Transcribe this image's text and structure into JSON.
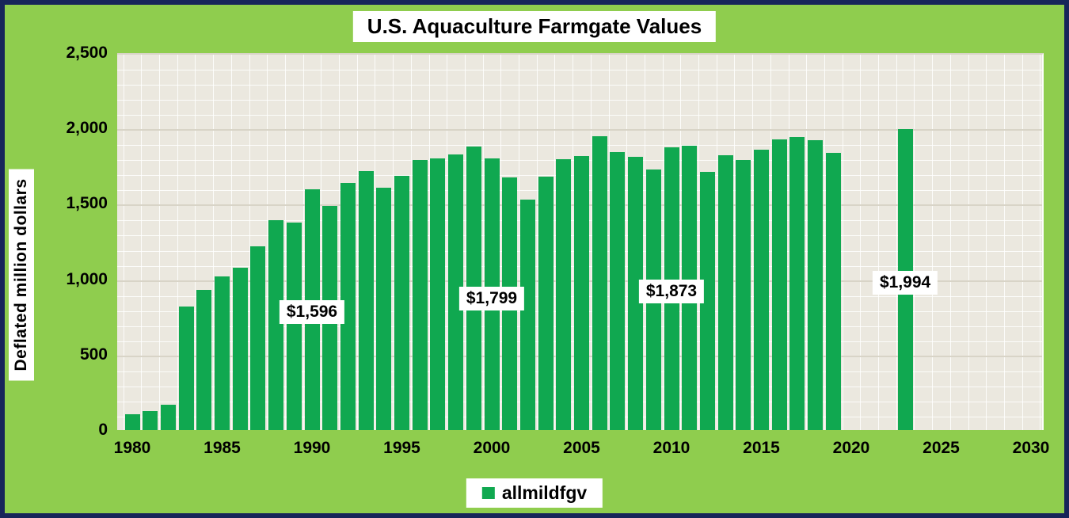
{
  "page": {
    "background_color": "#8FCD4E",
    "border_color": "#17255A"
  },
  "chart_data": {
    "type": "bar",
    "title": "U.S. Aquaculture Farmgate Values",
    "ylabel": "Deflated million dollars",
    "xlabel": "",
    "units": "deflated million dollars",
    "bar_color": "#10A850",
    "plot_background": "#EBE8DF",
    "grid_minor_color": "rgba(255,255,255,0.85)",
    "grid_major_color": "#D8D4C7",
    "ylim": [
      0,
      2500
    ],
    "xlim": [
      1980,
      2030
    ],
    "y_ticks": [
      0,
      500,
      1000,
      1500,
      2000,
      2500
    ],
    "x_ticks": [
      1980,
      1985,
      1990,
      1995,
      2000,
      2005,
      2010,
      2015,
      2020,
      2025,
      2030
    ],
    "grid": {
      "visible": true,
      "minor_y_step": 100,
      "major_y_step": 500,
      "x_step_years": 1
    },
    "legend": {
      "position": "bottom",
      "entries": [
        {
          "label": "allmildfgv",
          "color": "#10A850"
        }
      ]
    },
    "series": [
      {
        "name": "allmildfgv",
        "x": [
          1980,
          1981,
          1982,
          1983,
          1984,
          1985,
          1986,
          1987,
          1988,
          1989,
          1990,
          1991,
          1992,
          1993,
          1994,
          1995,
          1996,
          1997,
          1998,
          1999,
          2000,
          2001,
          2002,
          2003,
          2004,
          2005,
          2006,
          2007,
          2008,
          2009,
          2010,
          2011,
          2012,
          2013,
          2014,
          2015,
          2016,
          2017,
          2018,
          2019,
          2023
        ],
        "values": [
          105,
          125,
          170,
          820,
          930,
          1020,
          1075,
          1220,
          1390,
          1375,
          1596,
          1485,
          1640,
          1720,
          1605,
          1685,
          1790,
          1800,
          1830,
          1880,
          1799,
          1675,
          1530,
          1680,
          1795,
          1815,
          1950,
          1845,
          1810,
          1730,
          1873,
          1885,
          1710,
          1820,
          1790,
          1860,
          1930,
          1945,
          1920,
          1840,
          1994
        ]
      }
    ],
    "annotations": [
      {
        "text": "$1,596",
        "year": 1990,
        "value": 1596,
        "cy": 325
      },
      {
        "text": "$1,799",
        "year": 2000,
        "value": 1799,
        "cy": 308
      },
      {
        "text": "$1,873",
        "year": 2010,
        "value": 1873,
        "cy": 299
      },
      {
        "text": "$1,994",
        "year": 2023,
        "value": 1994,
        "cy": 288
      }
    ]
  }
}
